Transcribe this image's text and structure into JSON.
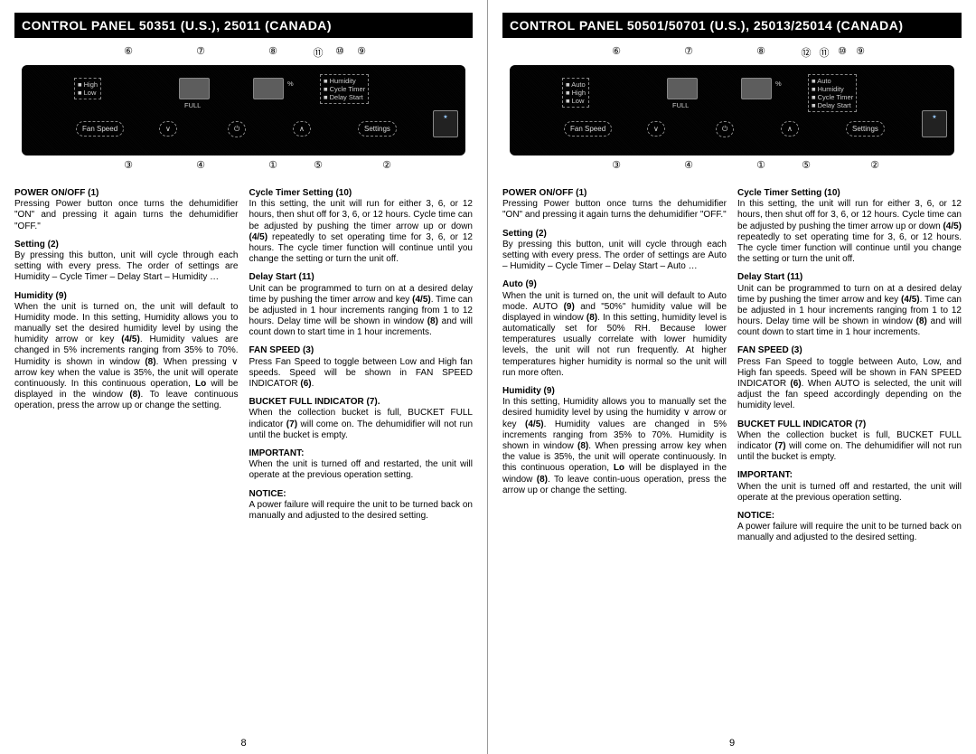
{
  "pageLeft": {
    "title": "CONTROL PANEL  50351 (U.S.), 25011 (CANADA)",
    "topNums": [
      "⑥",
      "⑦",
      "⑧",
      "⑪",
      "⑩",
      "⑨"
    ],
    "topPos": [
      116,
      196,
      276,
      326,
      350,
      374
    ],
    "botNums": [
      "③",
      "④",
      "①",
      "⑤",
      "②"
    ],
    "botPos": [
      116,
      196,
      276,
      326,
      402
    ],
    "panel": {
      "fanBox": {
        "lines": [
          "■ High",
          "■ Low"
        ]
      },
      "buttons": [
        "Fan Speed",
        "∨",
        "⏻",
        "∧",
        "Settings"
      ],
      "btnX": [
        60,
        152,
        228,
        300,
        372
      ],
      "disp1X": 174,
      "disp2X": 256,
      "full": "FULL",
      "pct": "%",
      "rightBox": {
        "lines": [
          "■ Humidity",
          "■ Cycle Timer",
          "■ Delay Start"
        ]
      },
      "estar": "energy\nSTAR"
    },
    "col1": [
      {
        "t": "POWER ON/OFF (1)",
        "b": "Pressing Power button once turns the dehumidifier \"ON\" and pressing it again turns the dehumidifier \"OFF.\""
      },
      {
        "t": "Setting (2)",
        "b": "By pressing this button, unit will cycle through each setting with every press.  The order of settings are Humidity – Cycle Timer – Delay Start – Humidity …"
      },
      {
        "t": "Humidity (9)",
        "b": "When the unit is turned on, the unit will default to Humidity mode. In this setting, Humidity allows you to manually set the desired humidity level by using the humidity arrow or key (4/5). Humidity values are changed in 5% increments ranging from 35% to 70%. Humidity is shown in window (8). When pressing  ∨ arrow key when the value is 35%, the unit will operate continuously. In this continuous operation, Lo will be displayed in the window (8). To leave continuous operation, press the arrow up or change the setting."
      }
    ],
    "col2": [
      {
        "t": "Cycle Timer Setting (10)",
        "b": "In this setting, the unit will run for either 3, 6, or 12 hours, then shut off for 3, 6, or 12 hours. Cycle time can be adjusted by pushing the timer arrow up or down (4/5) repeatedly to set operating time for 3, 6, or 12 hours. The cycle timer function will continue until you change the setting or turn the unit off."
      },
      {
        "t": "Delay Start (11)",
        "b": "Unit can be programmed to turn on at a desired delay time by pushing the timer arrow and key (4/5). Time can be adjusted in 1 hour increments ranging from 1 to 12 hours.  Delay time will be shown in window (8) and will count down to start time in 1 hour increments."
      },
      {
        "t": "FAN SPEED (3)",
        "b": "Press Fan Speed to toggle between Low and High fan speeds.  Speed will be shown in FAN SPEED INDICATOR (6)."
      },
      {
        "t": "BUCKET FULL INDICATOR (7).",
        "b": "When the collection bucket is full, BUCKET FULL indicator (7) will come on. The dehumidifier will not run until the bucket is empty."
      },
      {
        "t": "IMPORTANT:",
        "b": "When the unit is turned off and restarted, the unit will operate at the previous operation setting."
      },
      {
        "t": "NOTICE:",
        "b": "A power failure will require the unit to be turned back on manually and adjusted to the desired setting."
      }
    ],
    "pageNum": "8"
  },
  "pageRight": {
    "title": "CONTROL PANEL  50501/50701 (U.S.), 25013/25014 (CANADA)",
    "topNums": [
      "⑥",
      "⑦",
      "⑧",
      "⑫",
      "⑪",
      "⑩",
      "⑨"
    ],
    "topPos": [
      116,
      196,
      276,
      326,
      346,
      366,
      386
    ],
    "botNums": [
      "③",
      "④",
      "①",
      "⑤",
      "②"
    ],
    "botPos": [
      116,
      196,
      276,
      326,
      402
    ],
    "panel": {
      "fanBox": {
        "lines": [
          "■ Auto",
          "■ High",
          "■ Low"
        ]
      },
      "buttons": [
        "Fan Speed",
        "∨",
        "⏻",
        "∧",
        "Settings"
      ],
      "btnX": [
        60,
        152,
        228,
        300,
        372
      ],
      "disp1X": 174,
      "disp2X": 256,
      "full": "FULL",
      "pct": "%",
      "rightBox": {
        "lines": [
          "■ Auto",
          "■ Humidity",
          "■ Cycle Timer",
          "■ Delay Start"
        ]
      },
      "estar": "energy\nSTAR"
    },
    "col1": [
      {
        "t": "POWER ON/OFF (1)",
        "b": "Pressing Power button once turns the dehumidifier \"ON\" and pressing it again turns the dehumidifier \"OFF.\""
      },
      {
        "t": "Setting (2)",
        "b": "By pressing this button, unit will cycle through each setting with every press. The order of settings are Auto – Humidity – Cycle Timer – Delay Start – Auto …"
      },
      {
        "t": "Auto (9)",
        "b": "When the unit is turned on, the unit will default to Auto mode. AUTO (9) and \"50%\" humidity value will be displayed in window (8). In this setting, humidity level is automatically set for 50% RH.  Because lower temperatures usually correlate with lower humidity levels, the unit will not run frequently. At higher temperatures higher humidity is normal so the unit will run more often."
      },
      {
        "t": "Humidity (9)",
        "b": "In this setting, Humidity allows you to manually set the desired humidity level by using the humidity ∨ arrow or key (4/5). Humidity values are changed in 5% increments ranging from 35% to 70%. Humidity is shown in window (8). When pressing arrow key when the value is 35%, the unit will operate continuously. In this continuous operation, Lo will be displayed in the window (8). To leave contin-uous operation, press the arrow up or change the setting."
      }
    ],
    "col2": [
      {
        "t": "Cycle Timer Setting (10)",
        "b": "In this setting, the unit will run for either 3, 6, or 12 hours, then shut off for 3, 6, or 12 hours. Cycle time can be adjusted by pushing the timer arrow up or down (4/5) repeatedly to set operating time for 3, 6, or 12 hours. The cycle timer function will continue until you change the setting or turn the unit off."
      },
      {
        "t": "Delay Start (11)",
        "b": "Unit can be programmed to turn on at a desired delay time by pushing the timer arrow and key (4/5). Time can be adjusted in 1 hour increments ranging from 1 to 12 hours.  Delay time will be shown in window (8) and will count down to start time in 1 hour increments."
      },
      {
        "t": "FAN SPEED (3)",
        "b": "Press Fan Speed to toggle between Auto, Low, and High fan speeds.  Speed will be shown in FAN SPEED INDICATOR (6). When AUTO is selected, the unit will adjust the fan speed accordingly depending on the humidity level."
      },
      {
        "t": "BUCKET FULL INDICATOR (7)",
        "b": "When the collection bucket is full, BUCKET FULL indicator (7) will come on. The dehumidifier will not run until the bucket is empty."
      },
      {
        "t": "IMPORTANT:",
        "b": "When the unit is turned off and restarted, the unit will operate at the previous operation setting."
      },
      {
        "t": "NOTICE:",
        "b": "A power failure will require the unit to be turned back on manually and adjusted to the desired setting."
      }
    ],
    "pageNum": "9"
  }
}
